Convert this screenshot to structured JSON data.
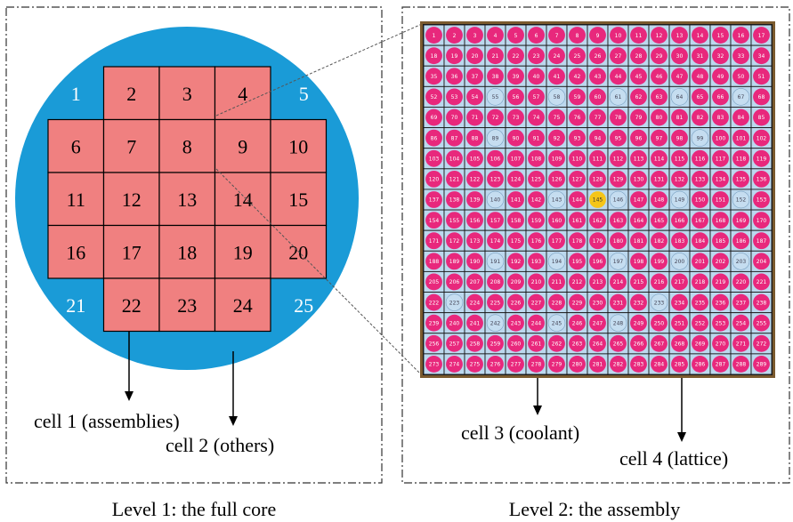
{
  "level1": {
    "caption": "Level 1: the full core",
    "assemblies": [
      "2",
      "3",
      "4",
      "6",
      "7",
      "8",
      "9",
      "10",
      "11",
      "12",
      "13",
      "14",
      "15",
      "16",
      "17",
      "18",
      "19",
      "20",
      "22",
      "23",
      "24"
    ],
    "corners": [
      "1",
      "5",
      "21",
      "25"
    ],
    "cell1_label": "cell 1 (assemblies)",
    "cell2_label": "cell 2 (others)"
  },
  "level2": {
    "caption": "Level 2: the assembly",
    "cell3_label": "cell 3 (coolant)",
    "cell4_label": "cell 4 (lattice)",
    "grid_size": 17,
    "pin_count": 289,
    "guide_tubes": [
      55,
      58,
      61,
      64,
      67,
      89,
      99,
      140,
      143,
      146,
      149,
      152,
      191,
      194,
      197,
      200,
      203,
      223,
      233,
      242,
      245,
      248
    ],
    "instrument_tube": [
      145
    ]
  },
  "colors": {
    "core_blue": "#1a9bd7",
    "assembly_red": "#f08080",
    "pin_magenta": "#e8287c",
    "guide_tube": "#c5ddf0",
    "instrument": "#f5c518",
    "frame_brown": "#7a5a2e"
  }
}
